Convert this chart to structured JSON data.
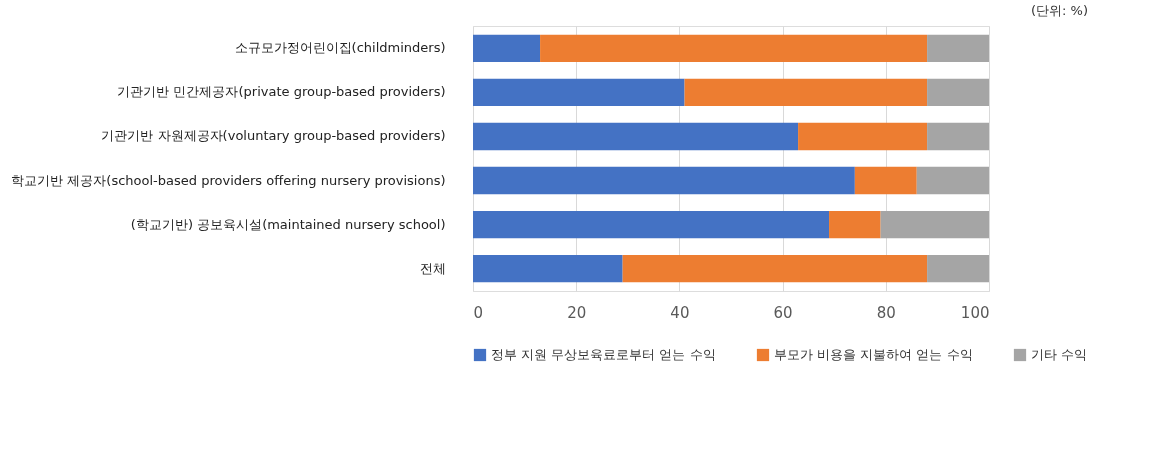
{
  "chart_data": {
    "type": "bar",
    "orientation": "horizontal",
    "stacked": true,
    "categories": [
      "소규모가정어린이집(childminders)",
      "기관기반 민간제공자(private group-based providers)",
      "기관기반 자원제공자(voluntary group-based providers)",
      "학교기반 제공자(school-based providers offering nursery provisions)",
      "(학교기반) 공보육시설(maintained nursery school)",
      "전체"
    ],
    "series": [
      {
        "name": "정부 지원 무상보육료로부터 얻는 수익",
        "color": "#4472c4",
        "values": [
          13,
          41,
          63,
          74,
          69,
          29
        ]
      },
      {
        "name": "부모가 비용을 지불하여 얻는 수익",
        "color": "#ed7d31",
        "values": [
          75,
          47,
          25,
          12,
          10,
          59
        ]
      },
      {
        "name": "기타 수익",
        "color": "#a5a5a5",
        "values": [
          12,
          12,
          12,
          14,
          21,
          12
        ]
      }
    ],
    "xlim": [
      0,
      100
    ],
    "xticks": [
      0,
      20,
      40,
      60,
      80,
      100
    ],
    "grid": "x",
    "legend": "bottom",
    "annotations": [
      "(단위: %)"
    ]
  }
}
